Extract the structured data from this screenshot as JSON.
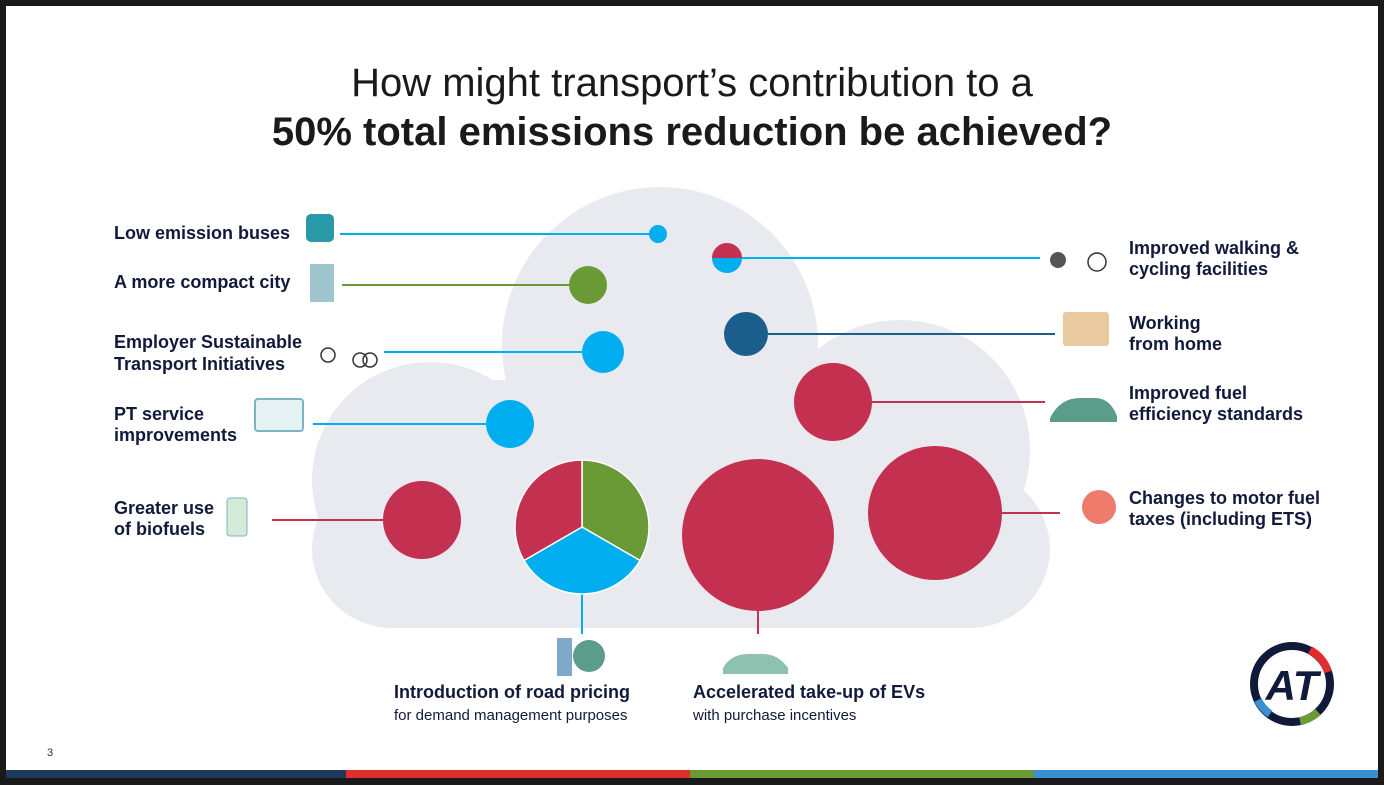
{
  "title": [
    "How might transport’s contribution to a",
    "50% total emissions reduction be achieved?"
  ],
  "left_labels": [
    {
      "lines": [
        "Low emission buses"
      ]
    },
    {
      "lines": [
        "A more compact city"
      ]
    },
    {
      "lines": [
        "Employer Sustainable",
        "Transport Initiatives"
      ]
    },
    {
      "lines": [
        "PT service",
        "improvements"
      ]
    },
    {
      "lines": [
        "Greater use",
        "of biofuels"
      ]
    }
  ],
  "right_labels": [
    {
      "lines": [
        "Improved walking &",
        "cycling facilities"
      ]
    },
    {
      "lines": [
        "Working",
        "from home"
      ]
    },
    {
      "lines": [
        "Improved fuel",
        "efficiency standards"
      ]
    },
    {
      "lines": [
        "Changes to motor fuel",
        "taxes (including ETS)"
      ]
    }
  ],
  "bottom_labels": [
    {
      "title": "Introduction of road pricing",
      "subtitle": "for demand management purposes"
    },
    {
      "title": "Accelerated take-up of EVs",
      "subtitle": "with purchase incentives"
    }
  ],
  "page_number": "3",
  "logo": "AT"
}
